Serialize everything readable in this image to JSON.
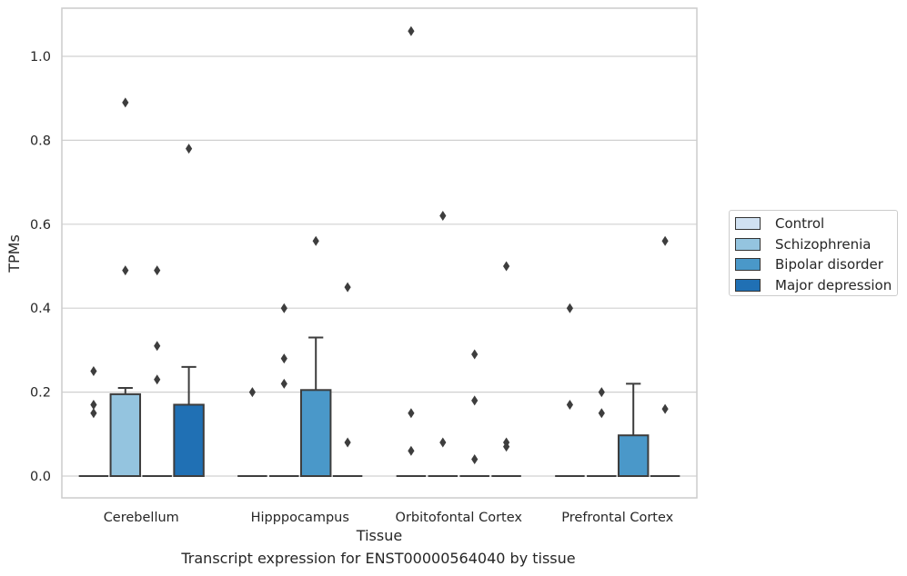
{
  "chart_data": {
    "type": "box",
    "xlabel": "Tissue",
    "ylabel": "TPMs",
    "ylim": [
      -0.05,
      1.12
    ],
    "yticks": [
      0.0,
      0.2,
      0.4,
      0.6,
      0.8,
      1.0
    ],
    "ytick_labels": [
      "0.0",
      "0.2",
      "0.4",
      "0.6",
      "0.8",
      "1.0"
    ],
    "grid": "horizontal",
    "legend_position": "right",
    "categories": [
      "Cerebellum",
      "Hipppocampus",
      "Orbitofontal Cortex",
      "Prefrontal Cortex"
    ],
    "series": [
      {
        "name": "Control",
        "color": "#d0e1f2",
        "boxes": [
          {
            "q1": 0,
            "median": 0,
            "q3": 0,
            "whisker_low": 0,
            "whisker_high": 0,
            "outliers": [
              0.25,
              0.17,
              0.15
            ]
          },
          {
            "q1": 0,
            "median": 0,
            "q3": 0,
            "whisker_low": 0,
            "whisker_high": 0,
            "outliers": [
              0.2
            ]
          },
          {
            "q1": 0,
            "median": 0,
            "q3": 0,
            "whisker_low": 0,
            "whisker_high": 0,
            "outliers": [
              1.06,
              0.15,
              0.06
            ]
          },
          {
            "q1": 0,
            "median": 0,
            "q3": 0,
            "whisker_low": 0,
            "whisker_high": 0,
            "outliers": [
              0.4,
              0.17
            ]
          }
        ]
      },
      {
        "name": "Schizophrenia",
        "color": "#94c4df",
        "boxes": [
          {
            "q1": 0,
            "median": 0,
            "q3": 0.195,
            "whisker_low": 0,
            "whisker_high": 0.21,
            "outliers": [
              0.89,
              0.49
            ]
          },
          {
            "q1": 0,
            "median": 0,
            "q3": 0,
            "whisker_low": 0,
            "whisker_high": 0,
            "outliers": [
              0.4,
              0.28,
              0.22
            ]
          },
          {
            "q1": 0,
            "median": 0,
            "q3": 0,
            "whisker_low": 0,
            "whisker_high": 0,
            "outliers": [
              0.62,
              0.08
            ]
          },
          {
            "q1": 0,
            "median": 0,
            "q3": 0,
            "whisker_low": 0,
            "whisker_high": 0,
            "outliers": [
              0.2,
              0.15
            ]
          }
        ]
      },
      {
        "name": "Bipolar disorder",
        "color": "#4a98c9",
        "boxes": [
          {
            "q1": 0,
            "median": 0,
            "q3": 0,
            "whisker_low": 0,
            "whisker_high": 0,
            "outliers": [
              0.49,
              0.31,
              0.23
            ]
          },
          {
            "q1": 0,
            "median": 0,
            "q3": 0.205,
            "whisker_low": 0,
            "whisker_high": 0.33,
            "outliers": [
              0.56
            ]
          },
          {
            "q1": 0,
            "median": 0,
            "q3": 0,
            "whisker_low": 0,
            "whisker_high": 0,
            "outliers": [
              0.29,
              0.18,
              0.04
            ]
          },
          {
            "q1": 0,
            "median": 0,
            "q3": 0.097,
            "whisker_low": 0,
            "whisker_high": 0.22,
            "outliers": []
          }
        ]
      },
      {
        "name": "Major depression",
        "color": "#2070b4",
        "boxes": [
          {
            "q1": 0,
            "median": 0,
            "q3": 0.17,
            "whisker_low": 0,
            "whisker_high": 0.26,
            "outliers": [
              0.78
            ]
          },
          {
            "q1": 0,
            "median": 0,
            "q3": 0,
            "whisker_low": 0,
            "whisker_high": 0,
            "outliers": [
              0.45,
              0.08
            ]
          },
          {
            "q1": 0,
            "median": 0,
            "q3": 0,
            "whisker_low": 0,
            "whisker_high": 0,
            "outliers": [
              0.5,
              0.08,
              0.07
            ]
          },
          {
            "q1": 0,
            "median": 0,
            "q3": 0,
            "whisker_low": 0,
            "whisker_high": 0,
            "outliers": [
              0.56,
              0.16
            ]
          }
        ]
      }
    ],
    "caption": "Transcript expression for ENST00000564040 by tissue"
  }
}
